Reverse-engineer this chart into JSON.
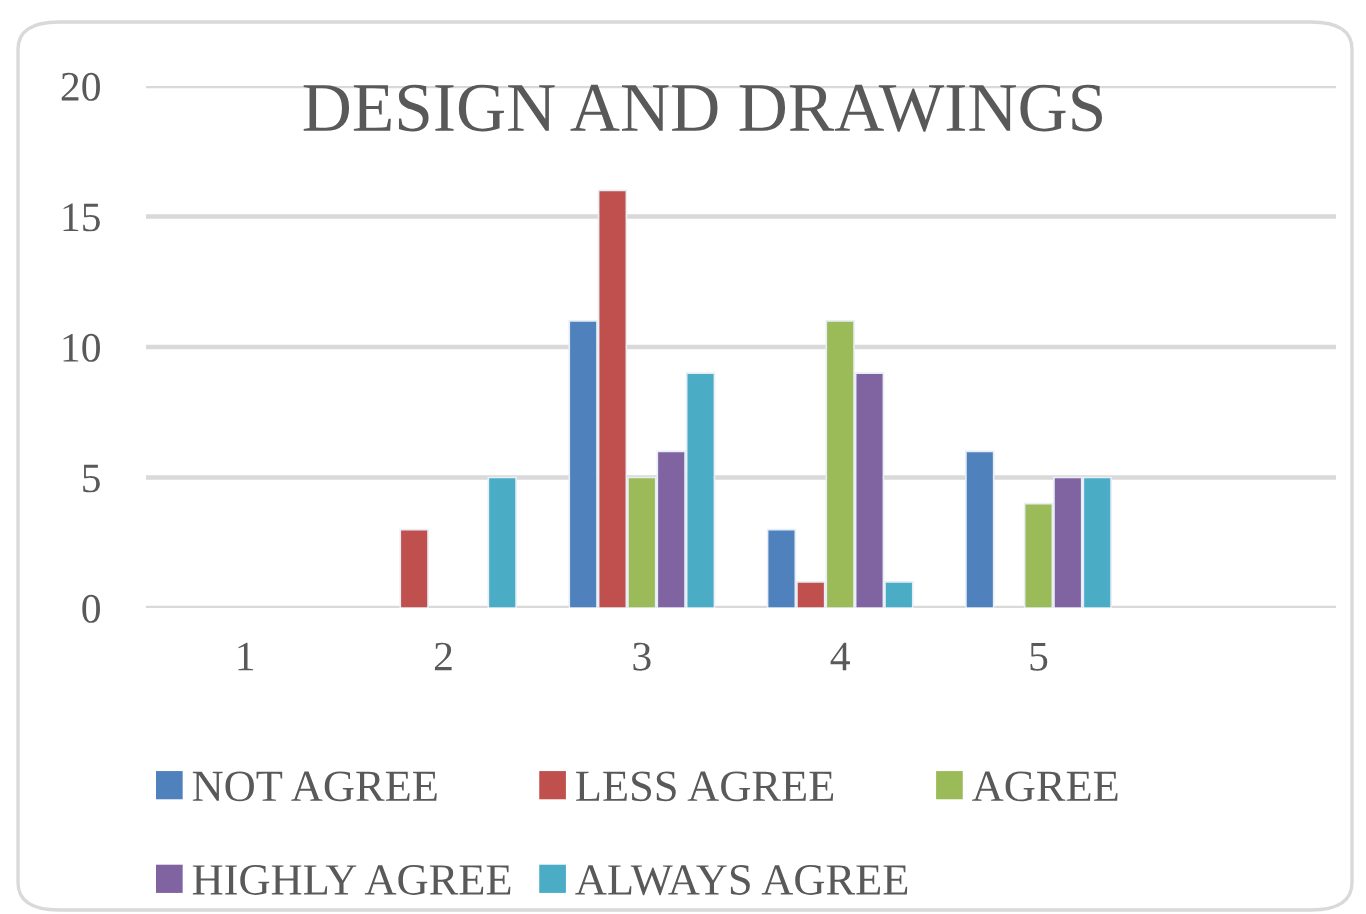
{
  "chart_data": {
    "type": "bar",
    "title": "DESIGN AND DRAWINGS",
    "categories": [
      "1",
      "2",
      "3",
      "4",
      "5",
      null
    ],
    "series": [
      {
        "name": "NOT AGREE",
        "color": "#4f81bd",
        "values": [
          null,
          null,
          11,
          3,
          6,
          null
        ]
      },
      {
        "name": "LESS AGREE",
        "color": "#c0504d",
        "values": [
          null,
          3,
          16,
          1,
          null,
          null
        ]
      },
      {
        "name": "AGREE",
        "color": "#9bbb59",
        "values": [
          null,
          null,
          5,
          11,
          4,
          null
        ]
      },
      {
        "name": "HIGHLY AGREE",
        "color": "#8064a2",
        "values": [
          null,
          null,
          6,
          9,
          5,
          null
        ]
      },
      {
        "name": "ALWAYS AGREE",
        "color": "#4bacc6",
        "values": [
          null,
          5,
          9,
          1,
          5,
          null
        ]
      }
    ],
    "ylim": [
      0,
      20
    ],
    "yticks": [
      0,
      5,
      10,
      15,
      20
    ],
    "grid": "y",
    "legend": "bottom"
  }
}
